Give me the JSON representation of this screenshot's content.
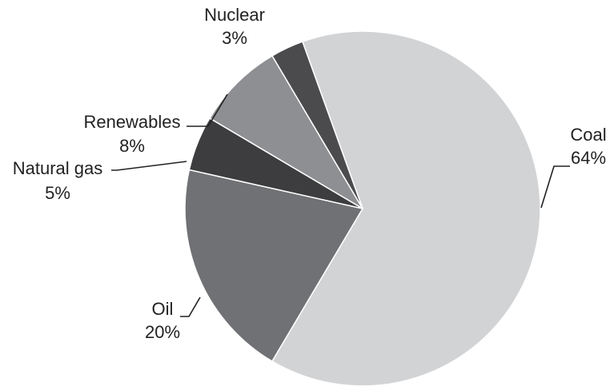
{
  "chart_data": {
    "type": "pie",
    "title": "",
    "slices": [
      {
        "name": "Coal",
        "value": 64,
        "label": "64%",
        "color": "#d2d3d5"
      },
      {
        "name": "Oil",
        "value": 20,
        "label": "20%",
        "color": "#707174"
      },
      {
        "name": "Natural gas",
        "value": 5,
        "label": "5%",
        "color": "#3d3d3f"
      },
      {
        "name": "Renewables",
        "value": 8,
        "label": "8%",
        "color": "#8e8f92"
      },
      {
        "name": "Nuclear",
        "value": 3,
        "label": "3%",
        "color": "#4b4b4d"
      }
    ],
    "legend": "none"
  }
}
